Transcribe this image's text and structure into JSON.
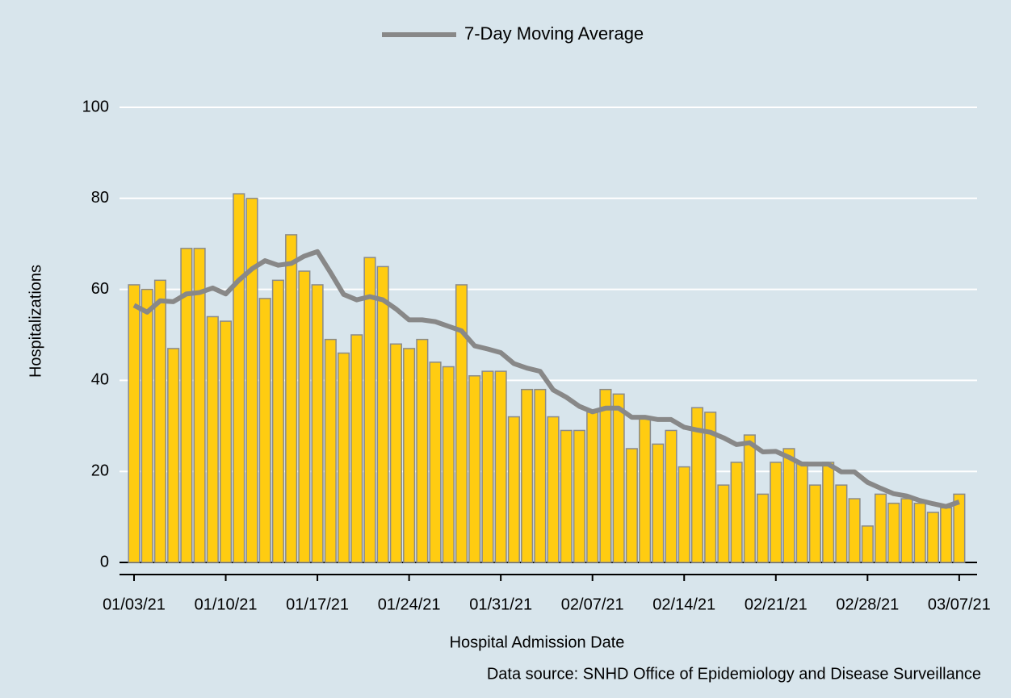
{
  "chart_data": {
    "type": "bar",
    "x_label": "Hospital Admission Date",
    "y_label": "Hospitalizations",
    "source": "Data source: SNHD Office of Epidemiology and Disease Surveillance",
    "categories": [
      "01/03/21",
      null,
      null,
      null,
      null,
      null,
      null,
      "01/10/21",
      null,
      null,
      null,
      null,
      null,
      null,
      "01/17/21",
      null,
      null,
      null,
      null,
      null,
      null,
      "01/24/21",
      null,
      null,
      null,
      null,
      null,
      null,
      "01/31/21",
      null,
      null,
      null,
      null,
      null,
      null,
      "02/07/21",
      null,
      null,
      null,
      null,
      null,
      null,
      "02/14/21",
      null,
      null,
      null,
      null,
      null,
      null,
      "02/21/21",
      null,
      null,
      null,
      null,
      null,
      null,
      "02/28/21",
      null,
      null,
      null,
      null,
      null,
      null,
      "03/07/21"
    ],
    "values": [
      61,
      60,
      62,
      47,
      69,
      69,
      54,
      53,
      81,
      80,
      58,
      62,
      72,
      64,
      61,
      49,
      46,
      50,
      67,
      65,
      48,
      47,
      49,
      44,
      43,
      61,
      41,
      42,
      42,
      32,
      38,
      38,
      32,
      29,
      29,
      33,
      38,
      37,
      25,
      32,
      26,
      29,
      21,
      34,
      33,
      17,
      22,
      28,
      15,
      22,
      25,
      22,
      17,
      22,
      17,
      14,
      8,
      15,
      13,
      14,
      13,
      11,
      12,
      15
    ],
    "color": "#ffcc11",
    "series": [
      {
        "name": "7-Day Moving Average",
        "type": "line",
        "color": "#888888",
        "values": [
          56.5,
          55,
          57.5,
          57.3,
          59,
          59.3,
          60.3,
          59,
          62,
          64.5,
          66.3,
          65.3,
          65.7,
          67.3,
          68.3,
          63.7,
          58.9,
          57.7,
          58.4,
          57.7,
          55.7,
          53.3,
          53.3,
          52.9,
          51.9,
          50.9,
          47.6,
          46.9,
          46.1,
          43.7,
          42.7,
          42,
          37.9,
          36.3,
          34.3,
          33.1,
          33.9,
          33.9,
          31.9,
          31.9,
          31.4,
          31.4,
          29.7,
          29.1,
          28.6,
          27.4,
          25.9,
          26.3,
          24.3,
          24.4,
          23.1,
          21.6,
          21.6,
          21.6,
          19.9,
          19.9,
          17.6,
          16.3,
          15.1,
          14.6,
          13.6,
          12.9,
          12.3,
          13.3
        ]
      }
    ],
    "ylim": [
      0,
      100
    ],
    "yticks": [
      0,
      20,
      40,
      60,
      80,
      100
    ],
    "grid": true,
    "legend": "top"
  }
}
